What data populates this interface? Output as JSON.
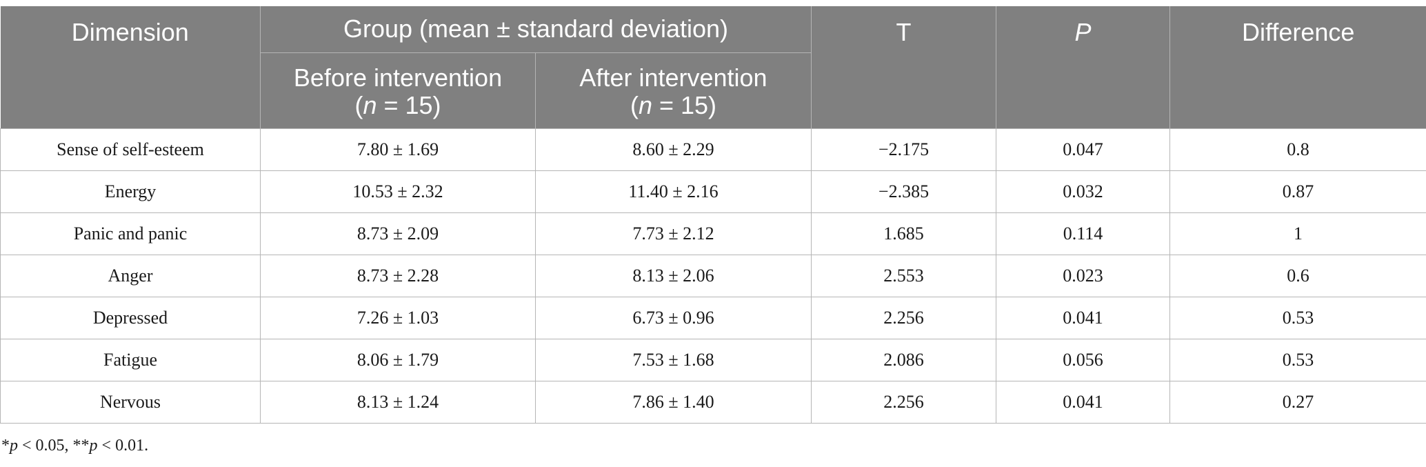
{
  "header": {
    "dimension": "Dimension",
    "group": "Group (mean ± standard deviation)",
    "before": "Before intervention",
    "after": "After intervention",
    "n_prefix": "(",
    "n_letter": "n",
    "n_eq": " = 15)",
    "t": "T",
    "p": "P",
    "difference": "Difference"
  },
  "rows": [
    {
      "dimension": "Sense of self-esteem",
      "before": "7.80 ± 1.69",
      "after": "8.60 ± 2.29",
      "t": "−2.175",
      "p": "0.047",
      "difference": "0.8"
    },
    {
      "dimension": "Energy",
      "before": "10.53 ± 2.32",
      "after": "11.40 ± 2.16",
      "t": "−2.385",
      "p": "0.032",
      "difference": "0.87"
    },
    {
      "dimension": "Panic and panic",
      "before": "8.73 ± 2.09",
      "after": "7.73 ± 2.12",
      "t": "1.685",
      "p": "0.114",
      "difference": "1"
    },
    {
      "dimension": "Anger",
      "before": "8.73 ± 2.28",
      "after": "8.13 ± 2.06",
      "t": "2.553",
      "p": "0.023",
      "difference": "0.6"
    },
    {
      "dimension": "Depressed",
      "before": "7.26 ± 1.03",
      "after": "6.73 ± 0.96",
      "t": "2.256",
      "p": "0.041",
      "difference": "0.53"
    },
    {
      "dimension": "Fatigue",
      "before": "8.06 ± 1.79",
      "after": "7.53 ± 1.68",
      "t": "2.086",
      "p": "0.056",
      "difference": "0.53"
    },
    {
      "dimension": "Nervous",
      "before": "8.13 ± 1.24",
      "after": "7.86 ± 1.40",
      "t": "2.256",
      "p": "0.041",
      "difference": "0.27"
    }
  ],
  "footnote": {
    "star1": "*",
    "p1": "p",
    "rest1": " < 0.05, **",
    "p2": "p",
    "rest2": " < 0.01."
  }
}
